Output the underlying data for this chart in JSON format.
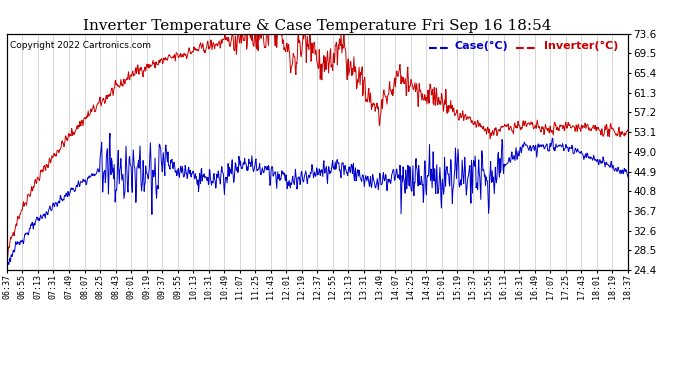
{
  "title": "Inverter Temperature & Case Temperature Fri Sep 16 18:54",
  "copyright": "Copyright 2022 Cartronics.com",
  "legend_case": "Case(°C)",
  "legend_inverter": "Inverter(°C)",
  "ylabel_right_ticks": [
    24.4,
    28.5,
    32.6,
    36.7,
    40.8,
    44.9,
    49.0,
    53.1,
    57.2,
    61.3,
    65.4,
    69.5,
    73.6
  ],
  "ymin": 24.4,
  "ymax": 73.6,
  "bg_color": "#ffffff",
  "grid_color": "#c8c8c8",
  "case_color": "#0000cc",
  "inverter_color": "#cc0000",
  "title_fontsize": 11,
  "axis_fontsize": 7,
  "x_tick_labels": [
    "06:37",
    "06:55",
    "07:13",
    "07:31",
    "07:49",
    "08:07",
    "08:25",
    "08:43",
    "09:01",
    "09:19",
    "09:37",
    "09:55",
    "10:13",
    "10:31",
    "10:49",
    "11:07",
    "11:25",
    "11:43",
    "12:01",
    "12:19",
    "12:37",
    "12:55",
    "13:13",
    "13:31",
    "13:49",
    "14:07",
    "14:25",
    "14:43",
    "15:01",
    "15:19",
    "15:37",
    "15:55",
    "16:13",
    "16:31",
    "16:49",
    "17:07",
    "17:25",
    "17:43",
    "18:01",
    "18:19",
    "18:37"
  ]
}
